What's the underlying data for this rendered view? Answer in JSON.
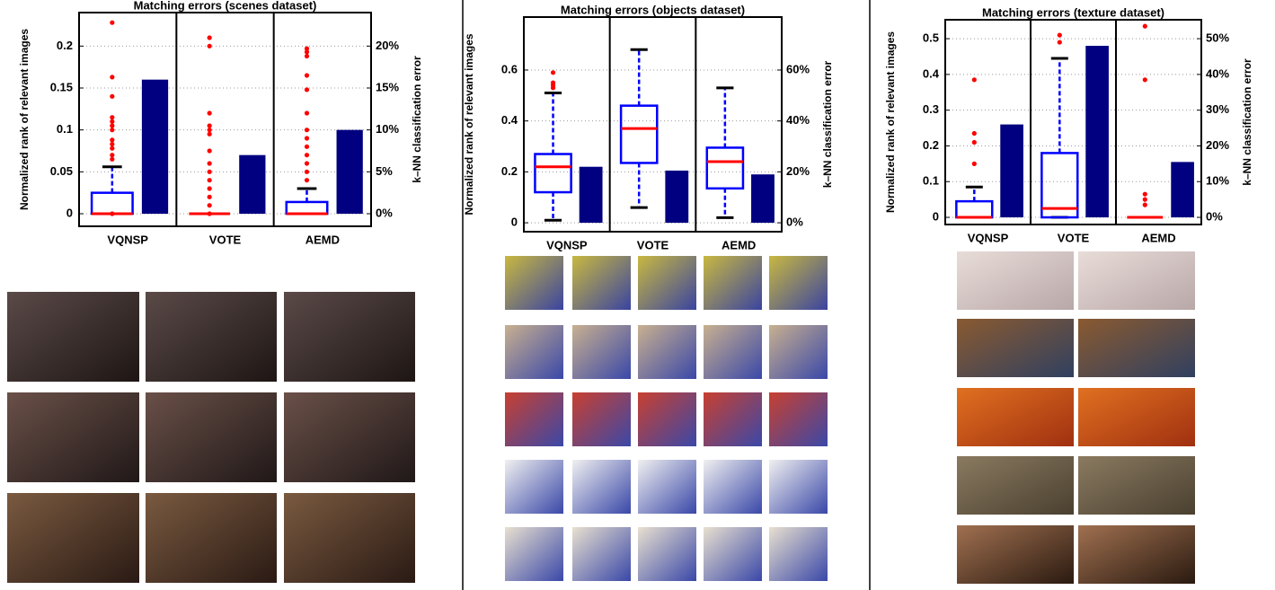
{
  "chart_data": [
    {
      "type": "box",
      "title": "Matching errors (scenes dataset)",
      "y_label": "Normalized rank of relevant images",
      "y2_label": "k–NN classification error",
      "categories": [
        "VQNSP",
        "VOTE",
        "AEMD"
      ],
      "ylim": [
        -0.015,
        0.24
      ],
      "yticks": [
        0,
        0.05,
        0.1,
        0.15,
        0.2
      ],
      "y2lim": [
        -1.5,
        24
      ],
      "y2ticks": [
        {
          "value": 0,
          "label": "0%"
        },
        {
          "value": 5,
          "label": "5%"
        },
        {
          "value": 10,
          "label": "10%"
        },
        {
          "value": 15,
          "label": "15%"
        },
        {
          "value": 20,
          "label": "20%"
        }
      ],
      "grid": true,
      "box_color": "#0000ff",
      "median_color": "#ff0000",
      "outlier_color": "#ff0000",
      "boxes": [
        {
          "whisker_low": 0,
          "q1": 0,
          "median": 0,
          "q3": 0.025,
          "whisker_high": 0.056,
          "outliers": [
            0.228,
            0.163,
            0.14,
            0.115,
            0.11,
            0.105,
            0.1,
            0.088,
            0.083,
            0.078,
            0.07,
            0.065,
            0
          ]
        },
        {
          "whisker_low": 0,
          "q1": 0,
          "median": 0,
          "q3": 0,
          "whisker_high": 0,
          "outliers": [
            0.21,
            0.2,
            0.12,
            0.105,
            0.1,
            0.095,
            0.075,
            0.06,
            0.05,
            0.04,
            0.03,
            0.02,
            0.01,
            0
          ]
        },
        {
          "whisker_low": 0,
          "q1": 0,
          "median": 0,
          "q3": 0.014,
          "whisker_high": 0.03,
          "outliers": [
            0.197,
            0.193,
            0.188,
            0.165,
            0.148,
            0.12,
            0.1,
            0.09,
            0.08,
            0.07,
            0.06,
            0.05,
            0.04
          ]
        }
      ],
      "series": [
        {
          "color": "#000080",
          "axis": "y2",
          "values": [
            16,
            7,
            10
          ]
        }
      ]
    },
    {
      "type": "box",
      "title": "Matching errors (objects dataset)",
      "y_label": "Normalized rank of relevant images",
      "y2_label": "k–NN classification error",
      "categories": [
        "VQNSP",
        "VOTE",
        "AEMD"
      ],
      "ylim": [
        -0.035,
        0.808
      ],
      "yticks": [
        0,
        0.2,
        0.4,
        0.6
      ],
      "y2lim": [
        -3.5,
        80.8
      ],
      "y2ticks": [
        {
          "value": 0,
          "label": "0%"
        },
        {
          "value": 20,
          "label": "20%"
        },
        {
          "value": 40,
          "label": "40%"
        },
        {
          "value": 60,
          "label": "60%"
        }
      ],
      "grid": true,
      "box_color": "#0000ff",
      "median_color": "#ff0000",
      "outlier_color": "#ff0000",
      "boxes": [
        {
          "whisker_low": 0.01,
          "q1": 0.12,
          "median": 0.22,
          "q3": 0.27,
          "whisker_high": 0.51,
          "outliers": [
            0.59,
            0.55,
            0.54,
            0.53
          ]
        },
        {
          "whisker_low": 0.06,
          "q1": 0.235,
          "median": 0.37,
          "q3": 0.46,
          "whisker_high": 0.68,
          "outliers": []
        },
        {
          "whisker_low": 0.02,
          "q1": 0.135,
          "median": 0.24,
          "q3": 0.295,
          "whisker_high": 0.53,
          "outliers": []
        }
      ],
      "series": [
        {
          "color": "#000080",
          "axis": "y2",
          "values": [
            22,
            20.5,
            19
          ]
        }
      ]
    },
    {
      "type": "box",
      "title": "Matching errors (texture dataset)",
      "y_label": "Normalized rank of relevant images",
      "y2_label": "k–NN classification error",
      "categories": [
        "VQNSP",
        "VOTE",
        "AEMD"
      ],
      "ylim": [
        -0.02,
        0.553
      ],
      "yticks": [
        0,
        0.1,
        0.2,
        0.3,
        0.4,
        0.5
      ],
      "y2lim": [
        -2,
        55.3
      ],
      "y2ticks": [
        {
          "value": 0,
          "label": "0%"
        },
        {
          "value": 10,
          "label": "10%"
        },
        {
          "value": 20,
          "label": "20%"
        },
        {
          "value": 30,
          "label": "30%"
        },
        {
          "value": 40,
          "label": "40%"
        },
        {
          "value": 50,
          "label": "50%"
        }
      ],
      "grid": true,
      "box_color": "#0000ff",
      "median_color": "#ff0000",
      "outlier_color": "#ff0000",
      "boxes": [
        {
          "whisker_low": 0,
          "q1": 0,
          "median": 0,
          "q3": 0.045,
          "whisker_high": 0.085,
          "outliers": [
            0.385,
            0.235,
            0.21,
            0.15
          ]
        },
        {
          "whisker_low": 0,
          "q1": 0,
          "median": 0.025,
          "q3": 0.18,
          "whisker_high": 0.445,
          "outliers": [
            0.51,
            0.49
          ]
        },
        {
          "whisker_low": 0,
          "q1": 0,
          "median": 0,
          "q3": 0,
          "whisker_high": 0,
          "outliers": [
            0.535,
            0.385,
            0.065,
            0.05,
            0.035
          ]
        }
      ],
      "series": [
        {
          "color": "#000080",
          "axis": "y2",
          "values": [
            26,
            48,
            15.5
          ]
        }
      ]
    }
  ]
}
